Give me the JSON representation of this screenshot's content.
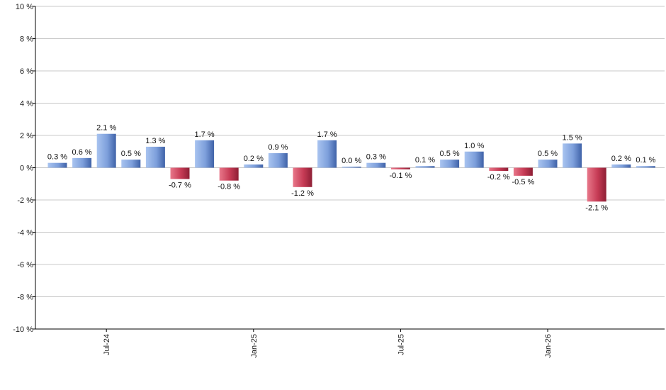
{
  "chart_data": {
    "type": "bar",
    "title": "",
    "xlabel": "",
    "ylabel": "",
    "y_unit": "%",
    "ylim": [
      -10,
      10
    ],
    "yticks": [
      10,
      8,
      6,
      4,
      2,
      0,
      -2,
      -4,
      -6,
      -8,
      -10
    ],
    "ytick_labels": [
      "10 %",
      "8 %",
      "6 %",
      "4 %",
      "2 %",
      "0 %",
      "-2 %",
      "-4 %",
      "-6 %",
      "-8 %",
      "-10 %"
    ],
    "grid": true,
    "legend": "none",
    "x_tick_labels": [
      {
        "label": "Jul-24",
        "bar_index": 2
      },
      {
        "label": "Jan-25",
        "bar_index": 8
      },
      {
        "label": "Jul-25",
        "bar_index": 14
      },
      {
        "label": "Jan-26",
        "bar_index": 20
      }
    ],
    "values": [
      0.3,
      0.6,
      2.1,
      0.5,
      1.3,
      -0.7,
      1.7,
      -0.8,
      0.2,
      0.9,
      -1.2,
      1.7,
      0.0,
      0.3,
      -0.1,
      0.1,
      0.5,
      1.0,
      -0.2,
      -0.5,
      0.5,
      1.5,
      -2.1,
      0.2,
      0.1
    ],
    "value_labels": [
      "0.3 %",
      "0.6 %",
      "2.1 %",
      "0.5 %",
      "1.3 %",
      "-0.7 %",
      "1.7 %",
      "-0.8 %",
      "0.2 %",
      "0.9 %",
      "-1.2 %",
      "1.7 %",
      "0.0 %",
      "0.3 %",
      "-0.1 %",
      "0.1 %",
      "0.5 %",
      "1.0 %",
      "-0.2 %",
      "-0.5 %",
      "0.5 %",
      "1.5 %",
      "-2.1 %",
      "0.2 %",
      "0.1 %"
    ],
    "colors": {
      "positive_light": "#a9c4f0",
      "positive_dark": "#3f62a8",
      "negative_light": "#e8778a",
      "negative_dark": "#8e1f35",
      "grid": "#c8c8c8",
      "axis": "#000000"
    }
  }
}
